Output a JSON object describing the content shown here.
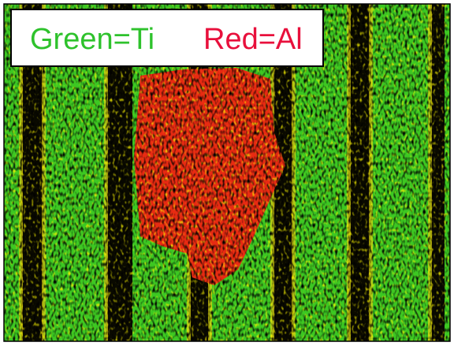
{
  "legend": {
    "ti": "Green=Ti",
    "al": "Red=Al"
  }
}
